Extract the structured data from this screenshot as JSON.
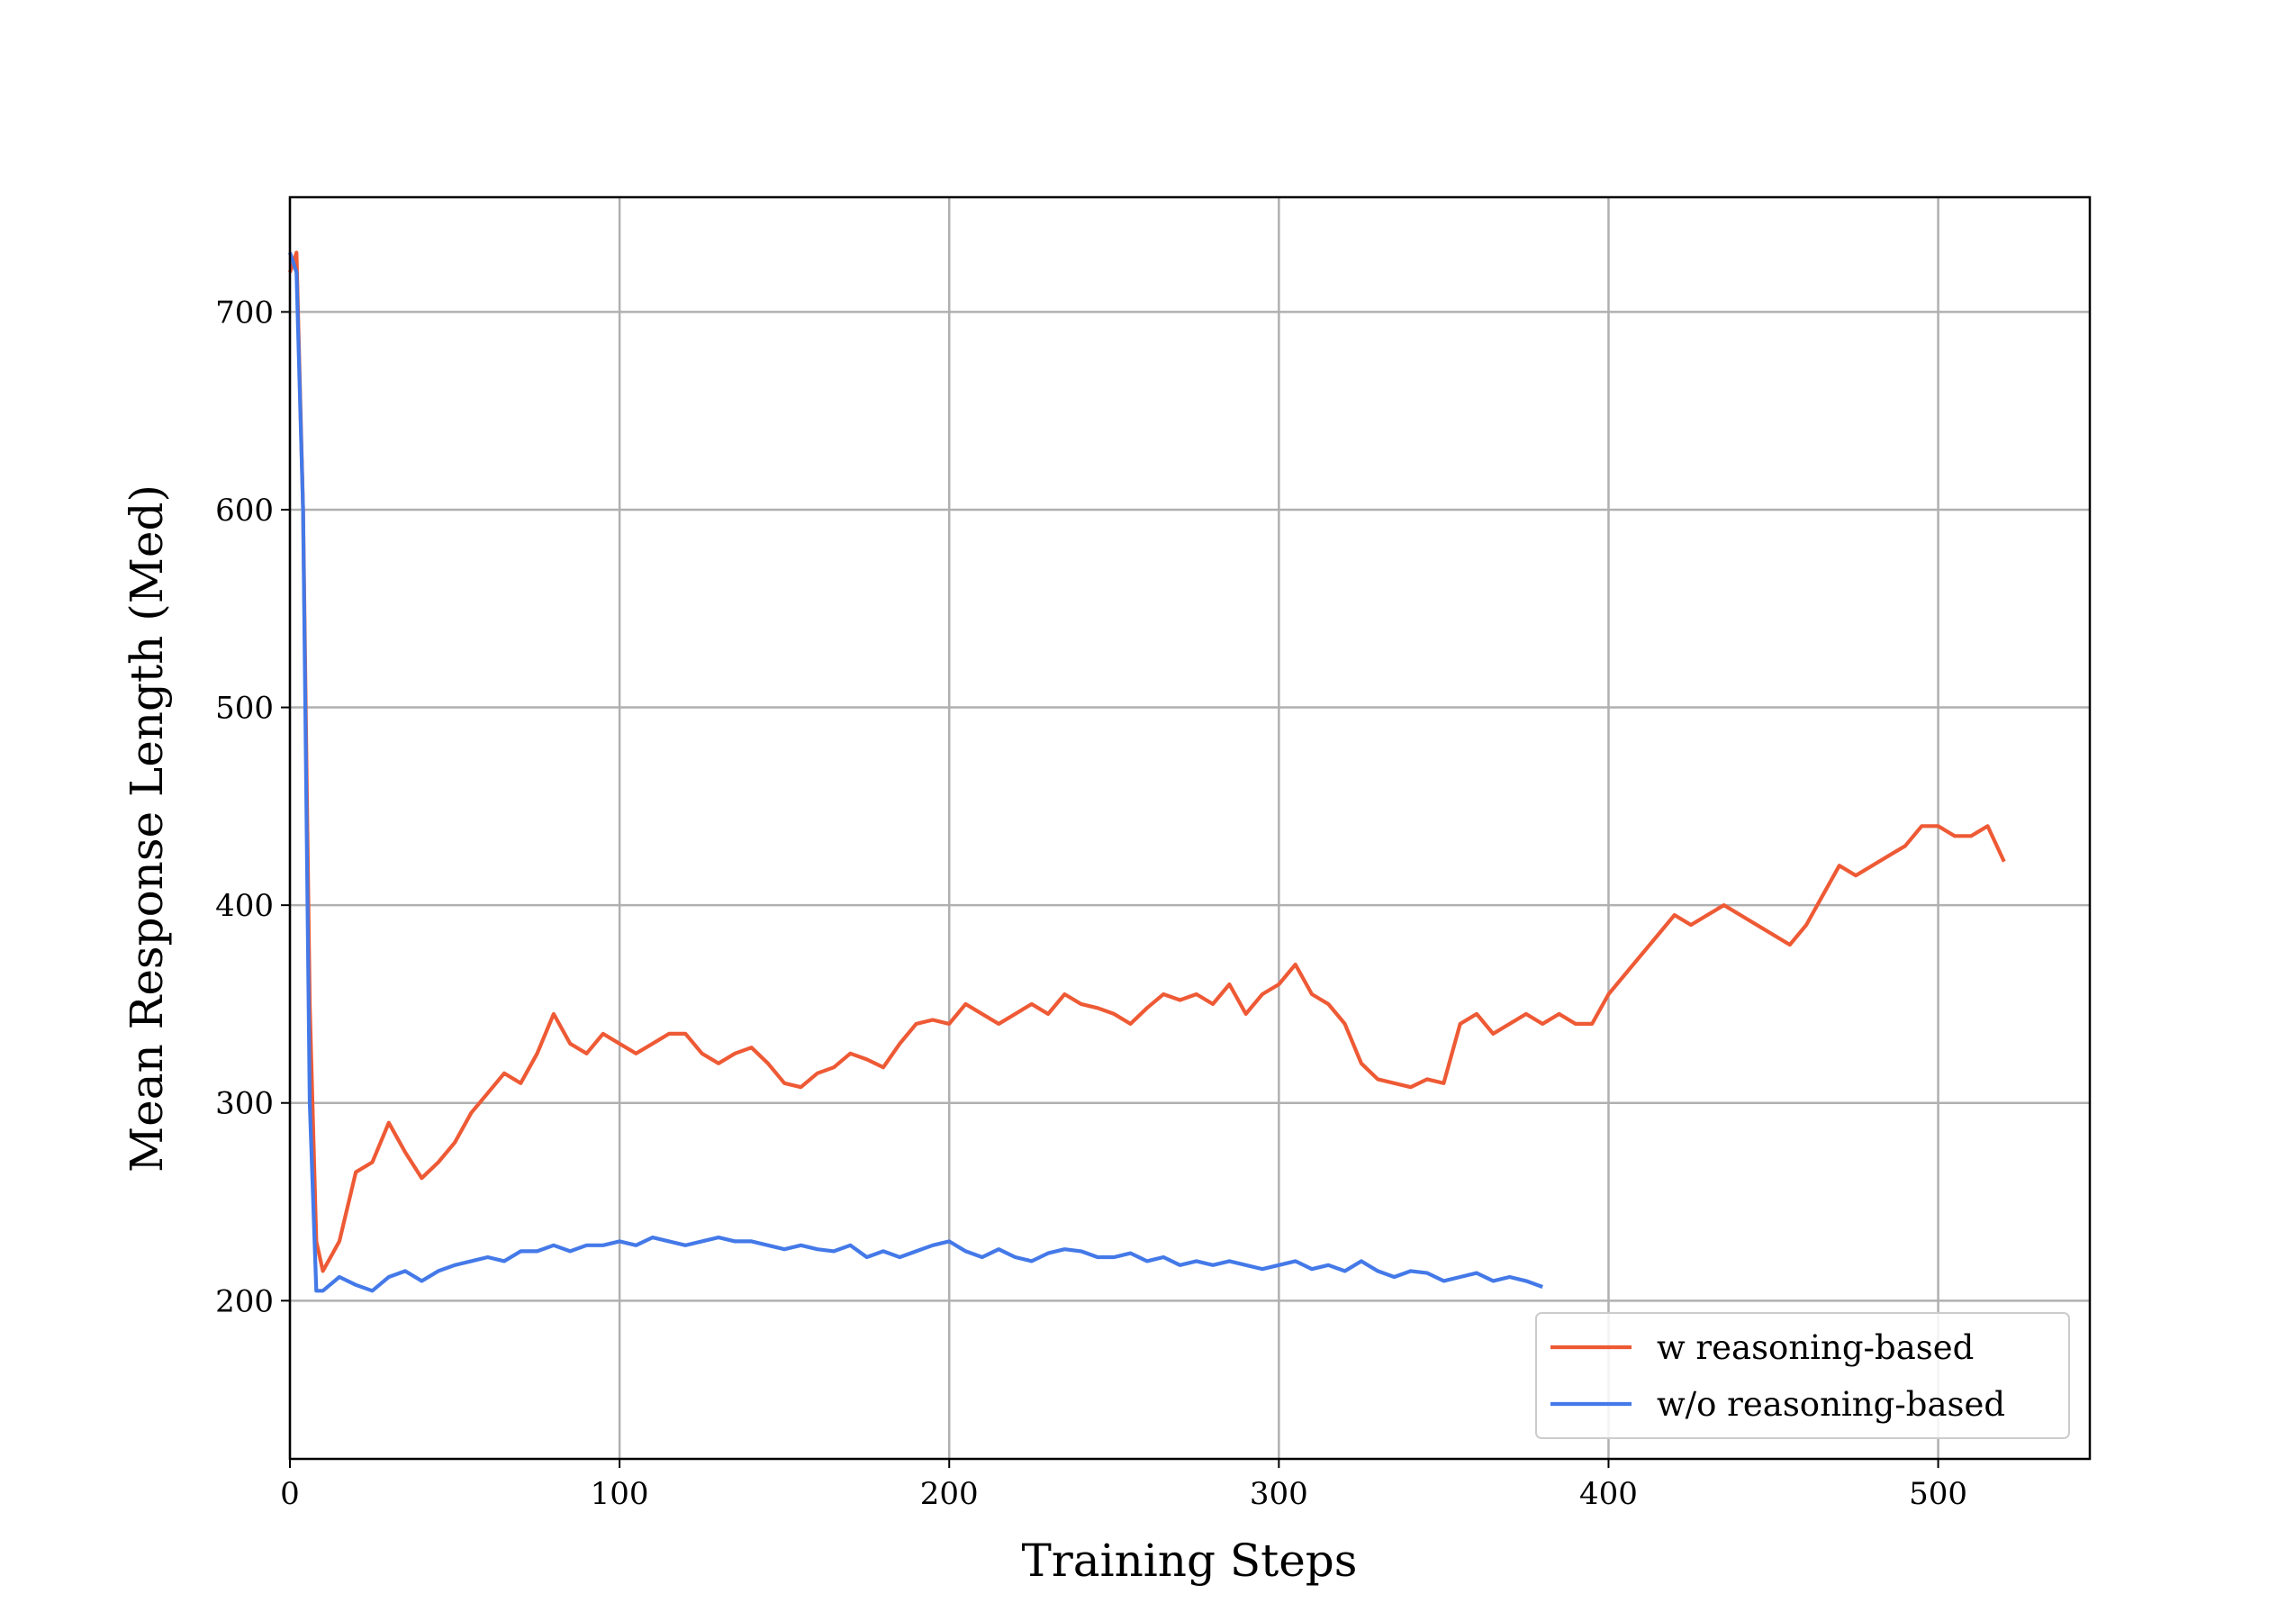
{
  "chart_data": {
    "type": "line",
    "xlabel": "Training Steps",
    "ylabel": "Mean Response Length (Med)",
    "x": [
      0,
      2,
      4,
      6,
      8,
      10,
      15,
      20,
      25,
      30,
      35,
      40,
      45,
      50,
      55,
      60,
      65,
      70,
      75,
      80,
      85,
      90,
      95,
      100,
      105,
      110,
      115,
      120,
      125,
      130,
      135,
      140,
      145,
      150,
      155,
      160,
      165,
      170,
      175,
      180,
      185,
      190,
      195,
      200,
      205,
      210,
      215,
      220,
      225,
      230,
      235,
      240,
      245,
      250,
      255,
      260,
      265,
      270,
      275,
      280,
      285,
      290,
      295,
      300,
      305,
      310,
      315,
      320,
      325,
      330,
      335,
      340,
      345,
      350,
      355,
      360,
      365,
      370,
      375,
      380,
      385,
      390,
      395,
      400,
      405,
      410,
      415,
      420,
      425,
      430,
      435,
      440,
      445,
      450,
      455,
      460,
      465,
      470,
      475,
      480,
      485,
      490,
      495,
      500,
      505,
      510,
      515,
      520
    ],
    "series": [
      {
        "name": "w reasoning-based",
        "color": "#ee5a35",
        "values": [
          720,
          730,
          600,
          350,
          230,
          215,
          230,
          265,
          270,
          290,
          275,
          262,
          270,
          280,
          295,
          305,
          315,
          310,
          325,
          345,
          330,
          325,
          335,
          330,
          325,
          330,
          335,
          335,
          325,
          320,
          325,
          328,
          320,
          310,
          308,
          315,
          318,
          325,
          322,
          318,
          330,
          340,
          342,
          340,
          350,
          345,
          340,
          345,
          350,
          345,
          355,
          350,
          348,
          345,
          340,
          348,
          355,
          352,
          355,
          350,
          360,
          345,
          355,
          360,
          370,
          355,
          350,
          340,
          320,
          312,
          310,
          308,
          312,
          310,
          340,
          345,
          335,
          340,
          345,
          340,
          345,
          340,
          340,
          355,
          365,
          375,
          385,
          395,
          390,
          395,
          400,
          395,
          390,
          385,
          380,
          390,
          405,
          420,
          415,
          420,
          425,
          430,
          440,
          440,
          435,
          435,
          440,
          422
        ]
      },
      {
        "name": "w/o reasoning-based",
        "color": "#4479e8",
        "values": [
          730,
          720,
          600,
          300,
          205,
          205,
          212,
          208,
          205,
          212,
          215,
          210,
          215,
          218,
          220,
          222,
          220,
          225,
          225,
          228,
          225,
          228,
          228,
          230,
          228,
          232,
          230,
          228,
          230,
          232,
          230,
          230,
          228,
          226,
          228,
          226,
          225,
          228,
          222,
          225,
          222,
          225,
          228,
          230,
          225,
          222,
          226,
          222,
          220,
          224,
          226,
          225,
          222,
          222,
          224,
          220,
          222,
          218,
          220,
          218,
          220,
          218,
          216,
          218,
          220,
          216,
          218,
          215,
          220,
          215,
          212,
          215,
          214,
          210,
          212,
          214,
          210,
          212,
          210,
          207,
          null,
          null,
          null,
          null,
          null,
          null,
          null,
          null,
          null,
          null,
          null,
          null,
          null,
          null,
          null,
          null,
          null,
          null,
          null,
          null,
          null,
          null,
          null,
          null,
          null,
          null,
          null,
          null
        ]
      }
    ],
    "xlim": [
      0,
      546
    ],
    "ylim": [
      120,
      758
    ],
    "xticks": [
      0,
      100,
      200,
      300,
      400,
      500
    ],
    "yticks": [
      200,
      300,
      400,
      500,
      600,
      700
    ],
    "grid": true,
    "legend": "lower right"
  }
}
